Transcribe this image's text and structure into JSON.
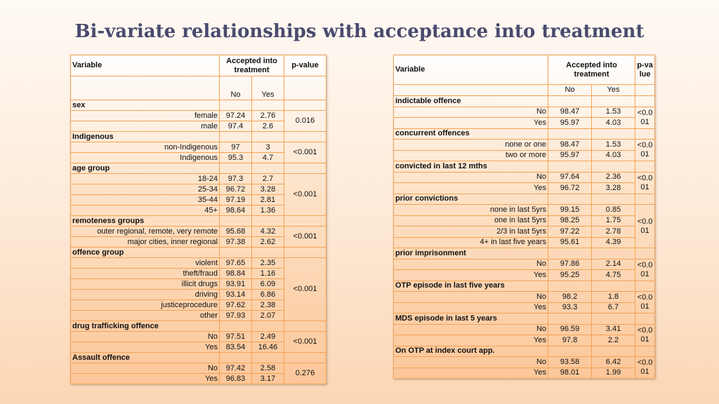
{
  "title": "Bi-variate relationships with acceptance into treatment",
  "left": {
    "headers": {
      "variable": "Variable",
      "accepted": "Accepted into treatment",
      "pvalue": "p-value",
      "no": "No",
      "yes": "Yes"
    },
    "groups": [
      {
        "name": "sex",
        "pvalue": "0.016",
        "rows": [
          {
            "label": "female",
            "no": "97.24",
            "yes": "2.76"
          },
          {
            "label": "male",
            "no": "97.4",
            "yes": "2.6"
          }
        ]
      },
      {
        "name": "Indigenous",
        "pvalue": "<0.001",
        "rows": [
          {
            "label": "non-Indigenous",
            "no": "97",
            "yes": "3"
          },
          {
            "label": "Indigenous",
            "no": "95.3",
            "yes": "4.7"
          }
        ]
      },
      {
        "name": "age group",
        "pvalue": "<0.001",
        "rows": [
          {
            "label": "18-24",
            "no": "97.3",
            "yes": "2.7"
          },
          {
            "label": "25-34",
            "no": "96.72",
            "yes": "3.28"
          },
          {
            "label": "35-44",
            "no": "97.19",
            "yes": "2.81"
          },
          {
            "label": "45+",
            "no": "98.64",
            "yes": "1.36"
          }
        ]
      },
      {
        "name": "remoteness groups",
        "pvalue": "<0.001",
        "rows": [
          {
            "label": "outer regional, remote, very remote",
            "no": "95.68",
            "yes": "4.32"
          },
          {
            "label": "major cities, inner regional",
            "no": "97.38",
            "yes": "2.62"
          }
        ]
      },
      {
        "name": "offence group",
        "pvalue": "<0.001",
        "rows": [
          {
            "label": "violent",
            "no": "97.65",
            "yes": "2.35"
          },
          {
            "label": "theft/fraud",
            "no": "98.84",
            "yes": "1.16"
          },
          {
            "label": "illicit drugs",
            "no": "93.91",
            "yes": "6.09"
          },
          {
            "label": "driving",
            "no": "93.14",
            "yes": "6.86"
          },
          {
            "label": "justiceprocedure",
            "no": "97.62",
            "yes": "2.38"
          },
          {
            "label": "other",
            "no": "97.93",
            "yes": "2.07"
          }
        ]
      },
      {
        "name": "drug trafficking offence",
        "pvalue": "<0.001",
        "rows": [
          {
            "label": "No",
            "no": "97.51",
            "yes": "2.49"
          },
          {
            "label": "Yes",
            "no": "83.54",
            "yes": "16.46"
          }
        ]
      },
      {
        "name": "Assault offence",
        "pvalue": "0.276",
        "rows": [
          {
            "label": "No",
            "no": "97.42",
            "yes": "2.58"
          },
          {
            "label": "Yes",
            "no": "96.83",
            "yes": "3.17"
          }
        ]
      }
    ]
  },
  "right": {
    "headers": {
      "variable": "Variable",
      "accepted": "Accepted into treatment",
      "pvalue": "p-value",
      "no": "No",
      "yes": "Yes"
    },
    "groups": [
      {
        "name": "indictable offence",
        "pvalue": "<0.001",
        "rows": [
          {
            "label": "No",
            "no": "98.47",
            "yes": "1.53"
          },
          {
            "label": "Yes",
            "no": "95.97",
            "yes": "4.03"
          }
        ]
      },
      {
        "name": "concurrent offences",
        "pvalue": "<0.001",
        "rows": [
          {
            "label": "none or one",
            "no": "98.47",
            "yes": "1.53"
          },
          {
            "label": "two or more",
            "no": "95.97",
            "yes": "4.03"
          }
        ]
      },
      {
        "name": "convicted in last 12 mths",
        "pvalue": "<0.001",
        "rows": [
          {
            "label": "No",
            "no": "97.64",
            "yes": "2.36"
          },
          {
            "label": "Yes",
            "no": "96.72",
            "yes": "3.28"
          }
        ]
      },
      {
        "name": "prior convictions",
        "pvalue": "<0.001",
        "rows": [
          {
            "label": "none in last 5yrs",
            "no": "99.15",
            "yes": "0.85"
          },
          {
            "label": "one in last 5yrs",
            "no": "98.25",
            "yes": "1.75"
          },
          {
            "label": "2/3 in last 5yrs",
            "no": "97.22",
            "yes": "2.78"
          },
          {
            "label": "4+ in last five years",
            "no": "95.61",
            "yes": "4.39"
          }
        ]
      },
      {
        "name": "prior imprisonment",
        "pvalue": "<0.001",
        "rows": [
          {
            "label": "No",
            "no": "97.86",
            "yes": "2.14"
          },
          {
            "label": "Yes",
            "no": "95.25",
            "yes": "4.75"
          }
        ]
      },
      {
        "name": "OTP episode in last five years",
        "pvalue": "<0.001",
        "rows": [
          {
            "label": "No",
            "no": "98.2",
            "yes": "1.8"
          },
          {
            "label": "Yes",
            "no": "93.3",
            "yes": "6.7"
          }
        ]
      },
      {
        "name": "MDS episode in last 5 years",
        "pvalue": "<0.001",
        "rows": [
          {
            "label": "No",
            "no": "96.59",
            "yes": "3.41"
          },
          {
            "label": "Yes",
            "no": "97.8",
            "yes": "2.2"
          }
        ]
      },
      {
        "name": "On OTP at index court app.",
        "pvalue": "<0.001",
        "rows": [
          {
            "label": "No",
            "no": "93.58",
            "yes": "6.42"
          },
          {
            "label": "Yes",
            "no": "98.01",
            "yes": "1.99"
          }
        ]
      }
    ]
  }
}
